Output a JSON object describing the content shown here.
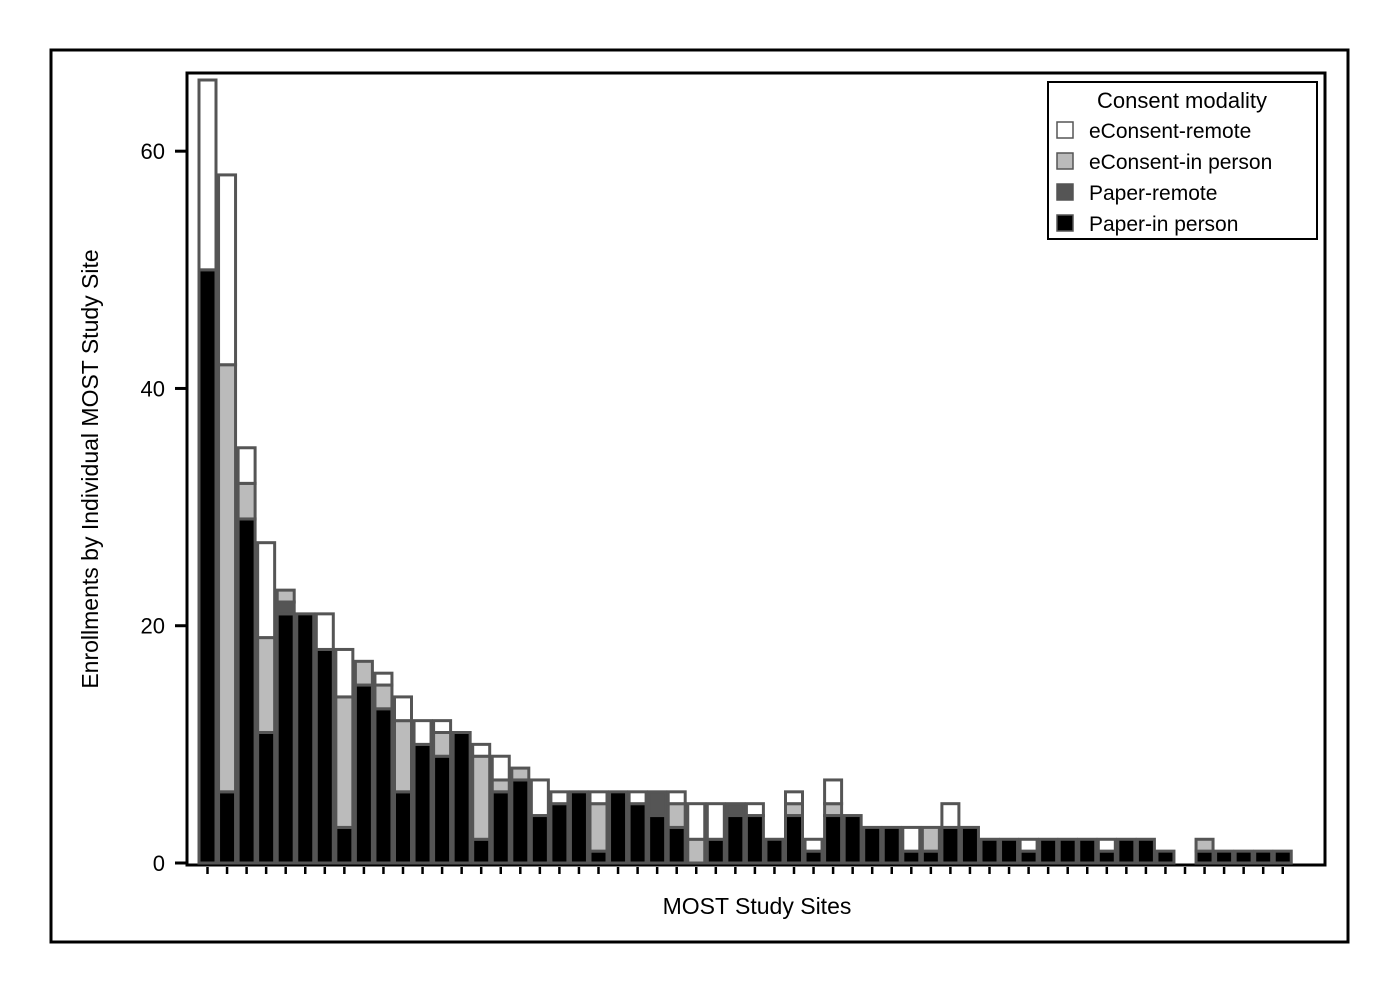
{
  "chart_data": {
    "type": "bar",
    "stacked": true,
    "xlabel": "MOST Study Sites",
    "ylabel": "Enrollments by Individual MOST Study Site",
    "ylim": [
      0,
      66
    ],
    "yticks": [
      0,
      20,
      40,
      60
    ],
    "grid": false,
    "legend": {
      "title": "Consent modality",
      "placement": "top-right",
      "entries": [
        "eConsent-remote",
        "eConsent-in person",
        "Paper-remote",
        "Paper-in person"
      ]
    },
    "series": [
      {
        "name": "Paper-in person",
        "color": "#000000",
        "values": [
          50,
          6,
          29,
          11,
          21,
          21,
          18,
          3,
          15,
          13,
          6,
          10,
          9,
          11,
          2,
          6,
          7,
          4,
          5,
          6,
          1,
          6,
          5,
          4,
          3,
          0,
          2,
          4,
          4,
          2,
          4,
          1,
          4,
          4,
          3,
          3,
          1,
          1,
          3,
          3,
          2,
          2,
          1,
          2,
          2,
          2,
          1,
          2,
          2,
          1,
          0,
          1,
          1,
          1,
          1,
          1
        ]
      },
      {
        "name": "Paper-remote",
        "color": "#555555",
        "values": [
          0,
          0,
          0,
          0,
          1,
          0,
          0,
          0,
          0,
          0,
          0,
          0,
          0,
          0,
          0,
          0,
          0,
          0,
          0,
          0,
          0,
          0,
          0,
          2,
          0,
          0,
          0,
          1,
          0,
          0,
          0,
          0,
          0,
          0,
          0,
          0,
          0,
          0,
          0,
          0,
          0,
          0,
          0,
          0,
          0,
          0,
          0,
          0,
          0,
          0,
          0,
          0,
          0,
          0,
          0,
          0
        ]
      },
      {
        "name": "eConsent-in person",
        "color": "#bbbbbb",
        "values": [
          0,
          36,
          3,
          8,
          1,
          0,
          0,
          11,
          2,
          2,
          6,
          0,
          2,
          0,
          7,
          1,
          1,
          0,
          0,
          0,
          4,
          0,
          0,
          0,
          2,
          2,
          0,
          0,
          0,
          0,
          1,
          0,
          1,
          0,
          0,
          0,
          0,
          2,
          0,
          0,
          0,
          0,
          0,
          0,
          0,
          0,
          0,
          0,
          0,
          0,
          0,
          1,
          0,
          0,
          0,
          0
        ]
      },
      {
        "name": "eConsent-remote",
        "color": "#ffffff",
        "values": [
          16,
          16,
          3,
          8,
          0,
          0,
          3,
          4,
          0,
          1,
          2,
          2,
          1,
          0,
          1,
          2,
          0,
          3,
          1,
          0,
          1,
          0,
          1,
          0,
          1,
          3,
          3,
          0,
          1,
          0,
          1,
          1,
          2,
          0,
          0,
          0,
          2,
          0,
          2,
          0,
          0,
          0,
          1,
          0,
          0,
          0,
          1,
          0,
          0,
          0,
          0,
          0,
          0,
          0,
          0,
          0
        ]
      }
    ]
  }
}
